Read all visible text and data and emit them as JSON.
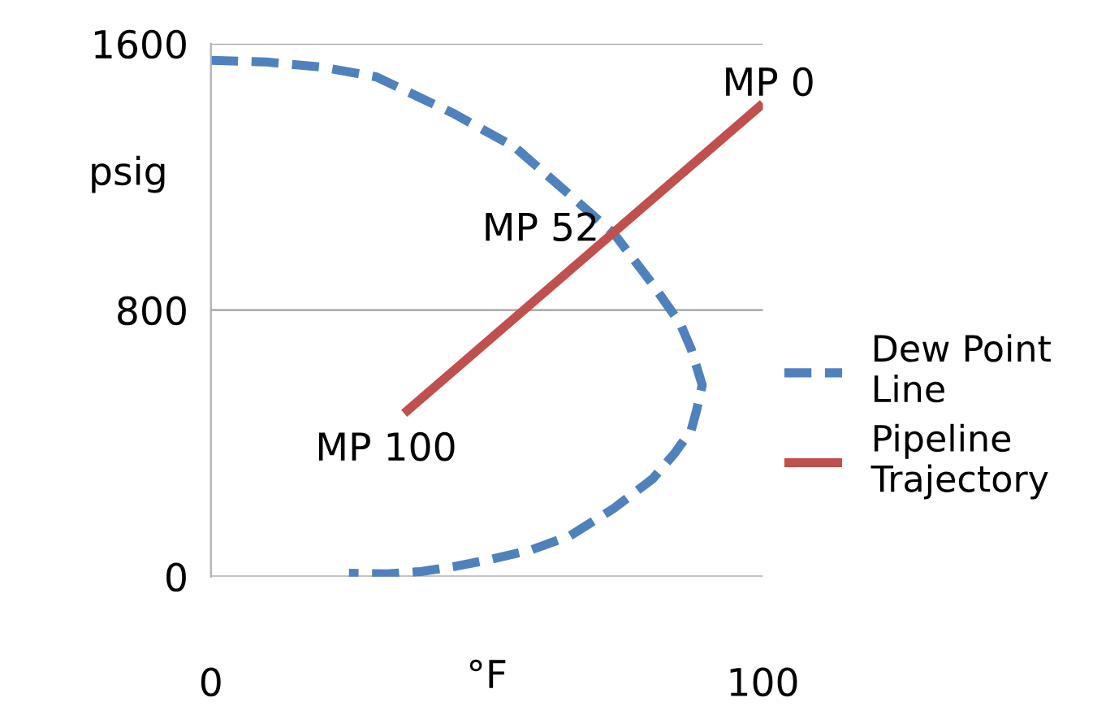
{
  "chart_data": {
    "type": "line",
    "xlabel": "°F",
    "ylabel": "psig",
    "xlim": [
      0,
      100
    ],
    "ylim": [
      0,
      1600
    ],
    "xticks": [
      0,
      100
    ],
    "yticks": [
      0,
      800,
      1600
    ],
    "grid": "y",
    "legend": "right",
    "series": [
      {
        "name": "Dew Point Line",
        "color": "#4f81bd",
        "line_style": "dashed",
        "x": [
          0,
          10,
          20,
          30,
          44,
          55,
          65,
          73,
          80,
          85,
          87,
          89,
          88,
          87,
          84,
          80,
          73,
          65,
          58,
          50,
          44,
          38,
          32,
          25
        ],
        "values": [
          1550,
          1545,
          1530,
          1500,
          1390,
          1290,
          1146,
          1030,
          878,
          760,
          683,
          575,
          500,
          439,
          370,
          293,
          205,
          122,
          80,
          49,
          30,
          15,
          8,
          10
        ]
      },
      {
        "name": "Pipeline Trajectory",
        "color": "#c0504d",
        "line_style": "solid",
        "x": [
          35,
          100
        ],
        "values": [
          490,
          1420
        ]
      }
    ],
    "annotations": [
      {
        "text": "MP 0",
        "x": 100,
        "y": 1420
      },
      {
        "text": "MP 52",
        "x": 72,
        "y": 1040
      },
      {
        "text": "MP 100",
        "x": 35,
        "y": 490
      }
    ]
  }
}
